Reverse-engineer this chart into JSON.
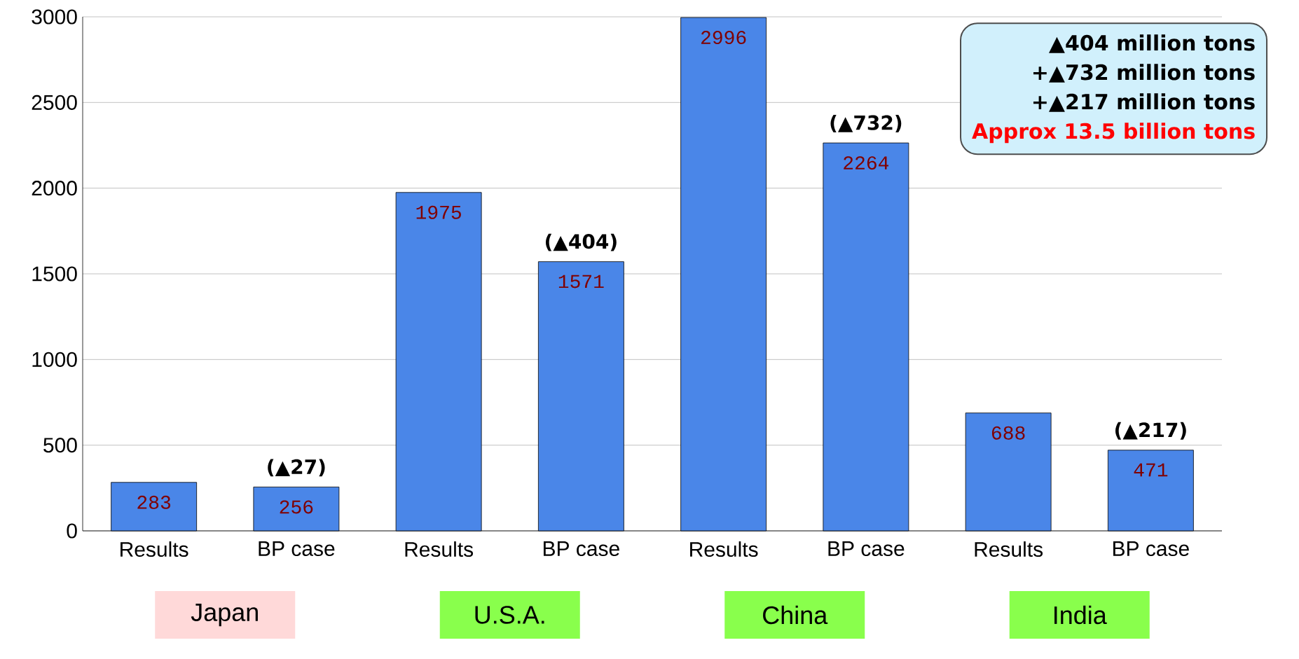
{
  "chart_data": {
    "type": "bar",
    "categories": [
      "Results",
      "BP case",
      "Results",
      "BP case",
      "Results",
      "BP case",
      "Results",
      "BP case"
    ],
    "values": [
      283,
      256,
      1975,
      1571,
      2996,
      2264,
      688,
      471
    ],
    "color": "#4a86e8",
    "data_labels": true,
    "ylim": [
      0,
      3000
    ],
    "yticks": [
      0,
      500,
      1000,
      1500,
      2000,
      2500,
      3000
    ],
    "grid": "y",
    "annotations": [
      "Japan",
      "U.S.A.",
      "China",
      "India",
      "(▲27)",
      "(▲404)",
      "(▲732)",
      "(▲217)",
      "▲**404** million tons",
      "+▲**732** million tons",
      "+▲**217** million tons",
      "Approx 13.5 billion tons"
    ]
  }
}
